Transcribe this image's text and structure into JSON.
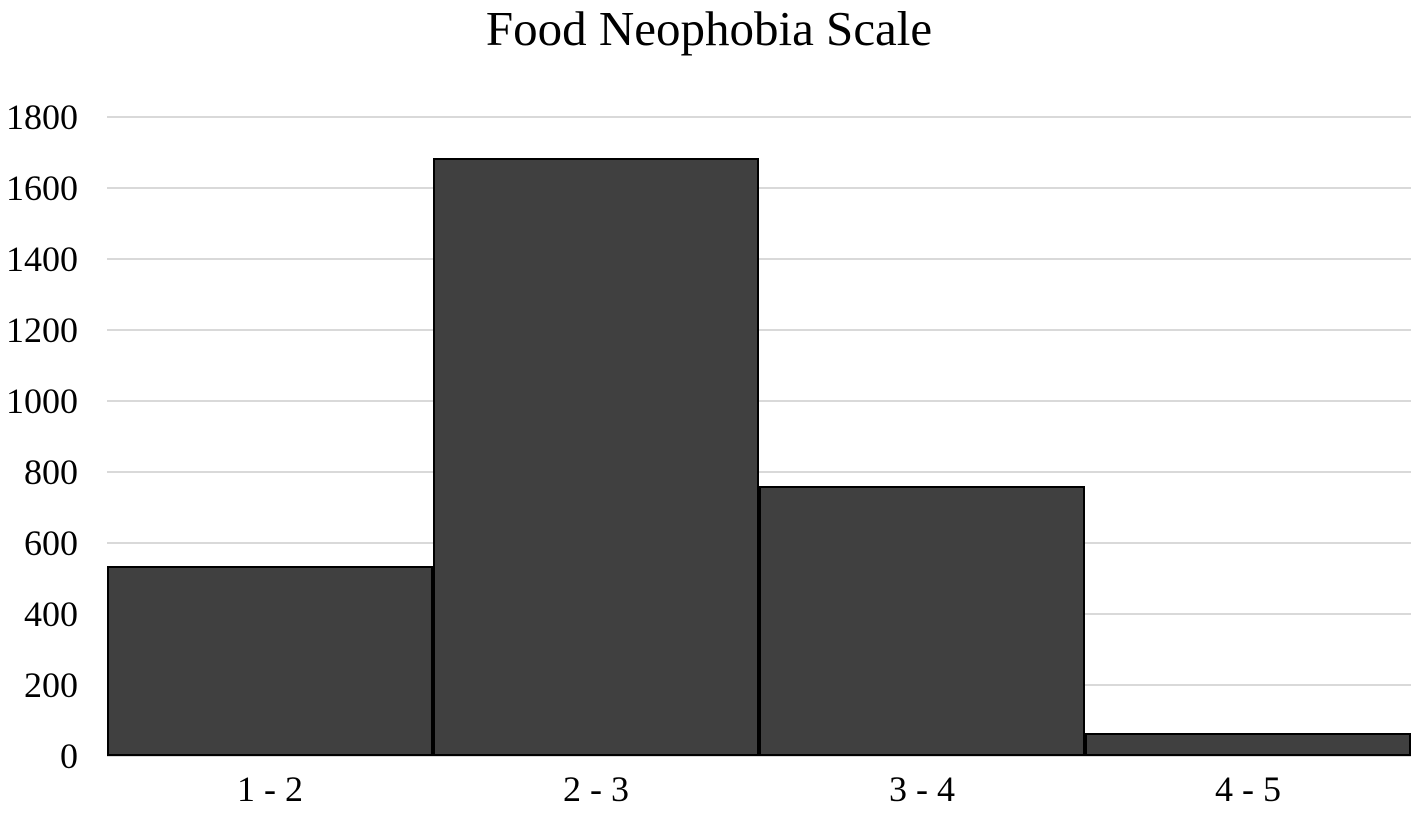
{
  "chart_data": {
    "type": "bar",
    "subtype": "histogram",
    "title": "Food Neophobia Scale",
    "categories": [
      "1 - 2",
      "2 - 3",
      "3 - 4",
      "4 - 5"
    ],
    "values": [
      535,
      1685,
      760,
      65
    ],
    "xlabel": "",
    "ylabel": "",
    "ylim": [
      0,
      1800
    ],
    "yticks": [
      0,
      200,
      400,
      600,
      800,
      1000,
      1200,
      1400,
      1600,
      1800
    ],
    "grid": true,
    "legend": false,
    "bar_gap": 0,
    "colors": {
      "bar_fill": "#404040",
      "bar_border": "#000000",
      "gridline": "#d9d9d9",
      "text": "#000000",
      "background": "#ffffff"
    }
  }
}
